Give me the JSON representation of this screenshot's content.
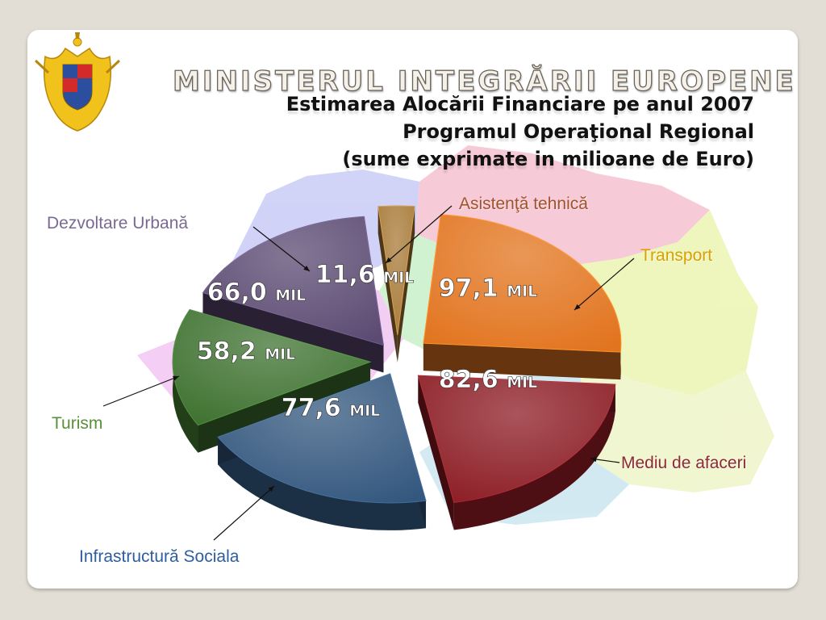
{
  "header": {
    "ministry": "MINISTERUL INTEGRĂRII EUROPENE",
    "title_lines": [
      "Estimarea Alocării Financiare pe anul 2007",
      "Programul Operaţional Regional",
      "(sume exprimate in milioane de Euro)"
    ]
  },
  "chart_data": {
    "type": "pie",
    "unit": "MIL",
    "slices": [
      {
        "label": "Transport",
        "value": 97.1,
        "value_text": "97,1",
        "color": "#e2741e",
        "label_color": "#d9a100"
      },
      {
        "label": "Mediu de afaceri",
        "value": 82.6,
        "value_text": "82,6",
        "color": "#8c1c24",
        "label_color": "#8c2a35"
      },
      {
        "label": "Infrastructură Sociala",
        "value": 77.6,
        "value_text": "77,6",
        "color": "#33577e",
        "label_color": "#2e5e9e"
      },
      {
        "label": "Turism",
        "value": 58.2,
        "value_text": "58,2",
        "color": "#3e7230",
        "label_color": "#5a8f3a"
      },
      {
        "label": "Dezvoltare Urbană",
        "value": 66.0,
        "value_text": "66,0",
        "color": "#5b4a72",
        "label_color": "#7a6a92"
      },
      {
        "label": "Asistenţă tehnică",
        "value": 11.6,
        "value_text": "11,6",
        "color": "#a87a38",
        "label_color": "#a0522d"
      }
    ]
  }
}
